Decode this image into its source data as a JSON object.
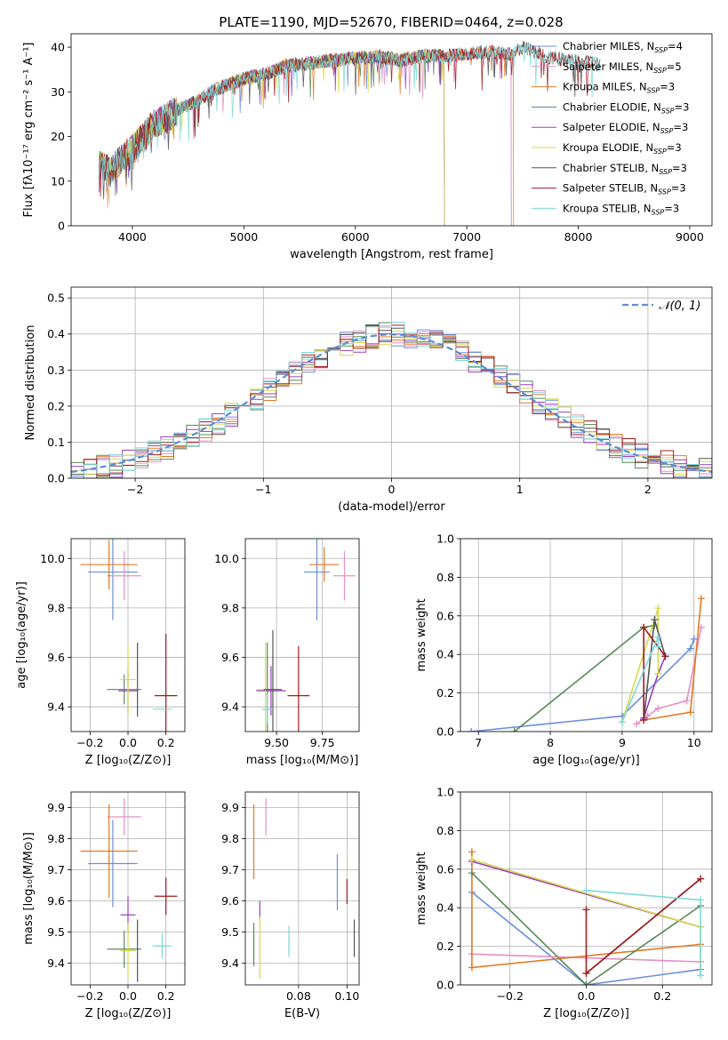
{
  "figure": {
    "title": "PLATE=1190, MJD=52670, FIBERID=0464, z=0.028",
    "colors": {
      "Chabrier MILES": "#6a8fd8",
      "Salpeter MILES": "#e68fc6",
      "Kroupa MILES": "#e07b26",
      "Chabrier ELODIE": "#5a8a5a",
      "Salpeter ELODIE": "#9b3fc0",
      "Kroupa ELODIE": "#d8d84a",
      "Chabrier STELIB": "#555555",
      "Salpeter STELIB": "#a01c1c",
      "Kroupa STELIB": "#7dd8d8"
    }
  },
  "chart_data": [
    {
      "id": "spectrum",
      "type": "line",
      "xlabel": "wavelength [Angstrom, rest frame]",
      "ylabel": "Flux [fλ10⁻¹⁷ erg cm⁻² s⁻¹ A⁻¹]",
      "xlim": [
        3450,
        9200
      ],
      "ylim": [
        0,
        43
      ],
      "xticks": [
        "4000",
        "5000",
        "6000",
        "7000",
        "8000",
        "9000"
      ],
      "yticks": [
        "0",
        "10",
        "20",
        "30",
        "40"
      ],
      "grid": false,
      "legend_position": "right",
      "legend": [
        {
          "model": "Chabrier MILES",
          "label": "Chabrier MILES, N",
          "sub": "SSP",
          "suffix": "=4"
        },
        {
          "model": "Salpeter MILES",
          "label": "Salpeter MILES, N",
          "sub": "SSP",
          "suffix": "=5"
        },
        {
          "model": "Kroupa MILES",
          "label": "Kroupa MILES, N",
          "sub": "SSP",
          "suffix": "=3"
        },
        {
          "model": "Chabrier ELODIE",
          "label": "Chabrier ELODIE, N",
          "sub": "SSP",
          "suffix": "=3"
        },
        {
          "model": "Salpeter ELODIE",
          "label": "Salpeter ELODIE, N",
          "sub": "SSP",
          "suffix": "=3"
        },
        {
          "model": "Kroupa ELODIE",
          "label": "Kroupa ELODIE, N",
          "sub": "SSP",
          "suffix": "=3"
        },
        {
          "model": "Chabrier STELIB",
          "label": "Chabrier STELIB, N",
          "sub": "SSP",
          "suffix": "=3"
        },
        {
          "model": "Salpeter STELIB",
          "label": "Salpeter STELIB, N",
          "sub": "SSP",
          "suffix": "=3"
        },
        {
          "model": "Kroupa STELIB",
          "label": "Kroupa STELIB, N",
          "sub": "SSP",
          "suffix": "=3"
        }
      ],
      "continuum": [
        [
          3700,
          14
        ],
        [
          3800,
          12
        ],
        [
          3900,
          15
        ],
        [
          4000,
          17
        ],
        [
          4100,
          20
        ],
        [
          4200,
          23
        ],
        [
          4300,
          24
        ],
        [
          4400,
          26
        ],
        [
          4500,
          27
        ],
        [
          4600,
          28
        ],
        [
          4700,
          30
        ],
        [
          4800,
          31
        ],
        [
          4900,
          32
        ],
        [
          5000,
          33
        ],
        [
          5100,
          33.5
        ],
        [
          5200,
          34
        ],
        [
          5300,
          35
        ],
        [
          5400,
          36
        ],
        [
          5500,
          36
        ],
        [
          5600,
          36.5
        ],
        [
          5800,
          37
        ],
        [
          6000,
          37.5
        ],
        [
          6200,
          38
        ],
        [
          6400,
          37
        ],
        [
          6600,
          38
        ],
        [
          6800,
          38
        ],
        [
          7000,
          38.5
        ],
        [
          7200,
          39
        ],
        [
          7400,
          38.5
        ],
        [
          7500,
          40
        ],
        [
          7700,
          38
        ],
        [
          7900,
          37
        ],
        [
          8100,
          36.5
        ],
        [
          8200,
          36
        ]
      ],
      "spectrum_end": {
        "Chabrier MILES": 7400,
        "Salpeter MILES": 7400,
        "Kroupa MILES": 7420,
        "Chabrier ELODIE": 6800,
        "Salpeter ELODIE": 6800,
        "Kroupa ELODIE": 6800,
        "Chabrier STELIB": 8200,
        "Salpeter STELIB": 8200,
        "Kroupa STELIB": 8200
      }
    },
    {
      "id": "residual-histogram",
      "type": "bar",
      "xlabel": "(data-model)/error",
      "ylabel": "Normed distribution",
      "xlim": [
        -2.5,
        2.5
      ],
      "ylim": [
        0,
        0.53
      ],
      "xticks": [
        "−2",
        "−1",
        "0",
        "1",
        "2"
      ],
      "yticks": [
        "0.0",
        "0.1",
        "0.2",
        "0.3",
        "0.4",
        "0.5"
      ],
      "grid": true,
      "bin_width": 0.1,
      "legend_position": "top-right",
      "reference_curve": {
        "label": "𝒩(0, 1)",
        "mean": 0,
        "sigma": 1,
        "style": "dashed"
      }
    },
    {
      "id": "age-vs-Z",
      "type": "scatter",
      "xlabel": "Z [log₁₀(Z/Z⊙)]",
      "ylabel": "age  [log₁₀(age/yr)]",
      "xlim": [
        -0.3,
        0.3
      ],
      "ylim": [
        9.3,
        10.08
      ],
      "xticks": [
        "−0.2",
        "0.0",
        "0.2"
      ],
      "yticks": [
        "9.4",
        "9.6",
        "9.8",
        "10.0"
      ],
      "grid": true,
      "points": [
        {
          "model": "Chabrier MILES",
          "x": -0.08,
          "xerr": 0.13,
          "y": 9.945,
          "yerr": 0.195
        },
        {
          "model": "Salpeter MILES",
          "x": -0.02,
          "xerr": 0.09,
          "y": 9.93,
          "yerr": 0.1
        },
        {
          "model": "Kroupa MILES",
          "x": -0.1,
          "xerr": 0.15,
          "y": 9.975,
          "yerr": 0.1
        },
        {
          "model": "Chabrier ELODIE",
          "x": -0.02,
          "xerr": 0.09,
          "y": 9.47,
          "yerr": 0.06
        },
        {
          "model": "Salpeter ELODIE",
          "x": 0.0,
          "xerr": 0.05,
          "y": 9.465,
          "yerr": 0.09
        },
        {
          "model": "Kroupa ELODIE",
          "x": 0.0,
          "xerr": 0.04,
          "y": 9.51,
          "yerr": 0.14
        },
        {
          "model": "Chabrier STELIB",
          "x": 0.05,
          "xerr": 0.0,
          "y": 9.51,
          "yerr": 0.15
        },
        {
          "model": "Salpeter STELIB",
          "x": 0.2,
          "xerr": 0.06,
          "y": 9.445,
          "yerr": 0.25
        },
        {
          "model": "Kroupa STELIB",
          "x": 0.18,
          "xerr": 0.05,
          "y": 9.39,
          "yerr": 0.0
        }
      ]
    },
    {
      "id": "age-vs-mass",
      "type": "scatter",
      "xlabel": "mass [log₁₀(M/M⊙)]",
      "ylabel": "",
      "xlim": [
        9.33,
        9.95
      ],
      "ylim": [
        9.3,
        10.08
      ],
      "xticks": [
        "9.50",
        "9.75"
      ],
      "yticks": [
        "9.4",
        "9.6",
        "9.8",
        "10.0"
      ],
      "grid": true,
      "points": [
        {
          "model": "Chabrier MILES",
          "x": 9.72,
          "xerr": 0.07,
          "y": 9.945,
          "yerr": 0.195
        },
        {
          "model": "Salpeter MILES",
          "x": 9.87,
          "xerr": 0.06,
          "y": 9.93,
          "yerr": 0.1
        },
        {
          "model": "Kroupa MILES",
          "x": 9.76,
          "xerr": 0.08,
          "y": 9.975,
          "yerr": 0.07
        },
        {
          "model": "Chabrier ELODIE",
          "x": 9.45,
          "xerr": 0.02,
          "y": 9.47,
          "yerr": 0.19
        },
        {
          "model": "Salpeter ELODIE",
          "x": 9.47,
          "xerr": 0.08,
          "y": 9.465,
          "yerr": 0.1
        },
        {
          "model": "Kroupa ELODIE",
          "x": 9.44,
          "xerr": 0.05,
          "y": 9.47,
          "yerr": 0.19
        },
        {
          "model": "Chabrier STELIB",
          "x": 9.48,
          "xerr": 0.05,
          "y": 9.47,
          "yerr": 0.24
        },
        {
          "model": "Salpeter STELIB",
          "x": 9.62,
          "xerr": 0.06,
          "y": 9.445,
          "yerr": 0.2
        },
        {
          "model": "Kroupa STELIB",
          "x": 9.45,
          "xerr": 0.03,
          "y": 9.39,
          "yerr": 0.06
        }
      ]
    },
    {
      "id": "mass-weight-vs-age",
      "type": "line",
      "xlabel": "age  [log₁₀(age/yr)]",
      "ylabel": "mass weight",
      "xlim": [
        6.75,
        10.25
      ],
      "ylim": [
        0,
        1
      ],
      "xticks": [
        "7",
        "8",
        "9",
        "10"
      ],
      "yticks": [
        "0.0",
        "0.2",
        "0.4",
        "0.6",
        "0.8",
        "1.0"
      ],
      "grid": true,
      "series": [
        {
          "model": "Chabrier MILES",
          "points": [
            [
              6.9,
              0.0
            ],
            [
              9.0,
              0.08
            ],
            [
              9.95,
              0.43
            ],
            [
              10.0,
              0.48
            ]
          ]
        },
        {
          "model": "Salpeter MILES",
          "points": [
            [
              9.2,
              0.04
            ],
            [
              9.35,
              0.08
            ],
            [
              9.5,
              0.12
            ],
            [
              9.9,
              0.16
            ],
            [
              10.1,
              0.54
            ]
          ]
        },
        {
          "model": "Kroupa MILES",
          "points": [
            [
              9.3,
              0.06
            ],
            [
              9.95,
              0.1
            ],
            [
              10.1,
              0.69
            ]
          ]
        },
        {
          "model": "Chabrier ELODIE",
          "points": [
            [
              7.5,
              0.0
            ],
            [
              9.3,
              0.54
            ],
            [
              9.45,
              0.55
            ]
          ]
        },
        {
          "model": "Salpeter ELODIE",
          "points": [
            [
              9.3,
              0.07
            ],
            [
              9.5,
              0.3
            ],
            [
              9.6,
              0.39
            ]
          ]
        },
        {
          "model": "Kroupa ELODIE",
          "points": [
            [
              9.0,
              0.05
            ],
            [
              9.5,
              0.64
            ],
            [
              9.5,
              0.3
            ]
          ]
        },
        {
          "model": "Chabrier STELIB",
          "points": [
            [
              9.3,
              0.06
            ],
            [
              9.45,
              0.58
            ],
            [
              9.6,
              0.39
            ]
          ]
        },
        {
          "model": "Salpeter STELIB",
          "points": [
            [
              9.3,
              0.06
            ],
            [
              9.3,
              0.54
            ],
            [
              9.6,
              0.39
            ]
          ]
        },
        {
          "model": "Kroupa STELIB",
          "points": [
            [
              9.0,
              0.05
            ],
            [
              9.5,
              0.49
            ],
            [
              9.5,
              0.44
            ]
          ]
        }
      ]
    },
    {
      "id": "mass-vs-Z",
      "type": "scatter",
      "xlabel": "Z [log₁₀(Z/Z⊙)]",
      "ylabel": "mass [log₁₀(M/M⊙)]",
      "xlim": [
        -0.3,
        0.3
      ],
      "ylim": [
        9.33,
        9.95
      ],
      "xticks": [
        "−0.2",
        "0.0",
        "0.2"
      ],
      "yticks": [
        "9.4",
        "9.5",
        "9.6",
        "9.7",
        "9.8",
        "9.9"
      ],
      "grid": true,
      "points": [
        {
          "model": "Chabrier MILES",
          "x": -0.08,
          "xerr": 0.13,
          "y": 9.72,
          "yerr": 0.14
        },
        {
          "model": "Salpeter MILES",
          "x": -0.02,
          "xerr": 0.09,
          "y": 9.87,
          "yerr": 0.06
        },
        {
          "model": "Kroupa MILES",
          "x": -0.1,
          "xerr": 0.15,
          "y": 9.76,
          "yerr": 0.15
        },
        {
          "model": "Chabrier ELODIE",
          "x": -0.02,
          "xerr": 0.09,
          "y": 9.445,
          "yerr": 0.06
        },
        {
          "model": "Salpeter ELODIE",
          "x": 0.0,
          "xerr": 0.04,
          "y": 9.555,
          "yerr": 0.06
        },
        {
          "model": "Kroupa ELODIE",
          "x": 0.0,
          "xerr": 0.04,
          "y": 9.44,
          "yerr": 0.09
        },
        {
          "model": "Chabrier STELIB",
          "x": 0.05,
          "xerr": 0.0,
          "y": 9.44,
          "yerr": 0.1
        },
        {
          "model": "Salpeter STELIB",
          "x": 0.2,
          "xerr": 0.06,
          "y": 9.615,
          "yerr": 0.06
        },
        {
          "model": "Kroupa STELIB",
          "x": 0.18,
          "xerr": 0.05,
          "y": 9.455,
          "yerr": 0.04
        }
      ]
    },
    {
      "id": "mass-vs-EBV",
      "type": "scatter",
      "xlabel": "E(B-V)",
      "ylabel": "",
      "xlim": [
        0.058,
        0.105
      ],
      "ylim": [
        9.33,
        9.95
      ],
      "xticks": [
        "0.08",
        "0.10"
      ],
      "yticks": [
        "9.4",
        "9.5",
        "9.6",
        "9.7",
        "9.8",
        "9.9"
      ],
      "grid": true,
      "points": [
        {
          "model": "Chabrier MILES",
          "x": 0.096,
          "xerr": 0,
          "y": 9.66,
          "yerr": 0.09
        },
        {
          "model": "Salpeter MILES",
          "x": 0.0665,
          "xerr": 0,
          "y": 9.87,
          "yerr": 0.06
        },
        {
          "model": "Kroupa MILES",
          "x": 0.0615,
          "xerr": 0,
          "y": 9.79,
          "yerr": 0.12
        },
        {
          "model": "Chabrier ELODIE",
          "x": 0.0615,
          "xerr": 0,
          "y": 9.46,
          "yerr": 0.07
        },
        {
          "model": "Salpeter ELODIE",
          "x": 0.064,
          "xerr": 0,
          "y": 9.57,
          "yerr": 0.03
        },
        {
          "model": "Kroupa ELODIE",
          "x": 0.064,
          "xerr": 0,
          "y": 9.45,
          "yerr": 0.1
        },
        {
          "model": "Chabrier STELIB",
          "x": 0.103,
          "xerr": 0,
          "y": 9.48,
          "yerr": 0.06
        },
        {
          "model": "Salpeter STELIB",
          "x": 0.1,
          "xerr": 0,
          "y": 9.63,
          "yerr": 0.04
        },
        {
          "model": "Kroupa STELIB",
          "x": 0.076,
          "xerr": 0,
          "y": 9.47,
          "yerr": 0.05
        }
      ]
    },
    {
      "id": "mass-weight-vs-Z",
      "type": "line",
      "xlabel": "Z [log₁₀(Z/Z⊙)]",
      "ylabel": "mass weight",
      "xlim": [
        -0.33,
        0.33
      ],
      "ylim": [
        0,
        1
      ],
      "xticks": [
        "−0.2",
        "0.0",
        "0.2"
      ],
      "yticks": [
        "0.0",
        "0.2",
        "0.4",
        "0.6",
        "0.8",
        "1.0"
      ],
      "grid": true,
      "series": [
        {
          "model": "Chabrier MILES",
          "points": [
            [
              -0.3,
              0.48
            ],
            [
              0.0,
              0.0
            ],
            [
              0.3,
              0.08
            ]
          ]
        },
        {
          "model": "Salpeter MILES",
          "points": [
            [
              -0.3,
              0.16
            ],
            [
              0.3,
              0.12
            ]
          ]
        },
        {
          "model": "Kroupa MILES",
          "points": [
            [
              -0.3,
              0.69
            ],
            [
              -0.3,
              0.09
            ],
            [
              0.3,
              0.21
            ]
          ]
        },
        {
          "model": "Chabrier ELODIE",
          "points": [
            [
              -0.3,
              0.58
            ],
            [
              0.0,
              0.0
            ],
            [
              0.3,
              0.41
            ]
          ]
        },
        {
          "model": "Salpeter ELODIE",
          "points": [
            [
              -0.3,
              0.64
            ],
            [
              0.3,
              0.3
            ]
          ]
        },
        {
          "model": "Kroupa ELODIE",
          "points": [
            [
              -0.3,
              0.65
            ],
            [
              0.3,
              0.3
            ],
            [
              0.3,
              0.05
            ]
          ]
        },
        {
          "model": "Chabrier STELIB",
          "points": [
            [
              0.0,
              0.06
            ],
            [
              0.3,
              0.55
            ]
          ]
        },
        {
          "model": "Salpeter STELIB",
          "points": [
            [
              0.0,
              0.39
            ],
            [
              0.0,
              0.06
            ],
            [
              0.3,
              0.55
            ]
          ]
        },
        {
          "model": "Kroupa STELIB",
          "points": [
            [
              0.0,
              0.49
            ],
            [
              0.3,
              0.44
            ],
            [
              0.3,
              0.05
            ]
          ]
        }
      ]
    }
  ]
}
